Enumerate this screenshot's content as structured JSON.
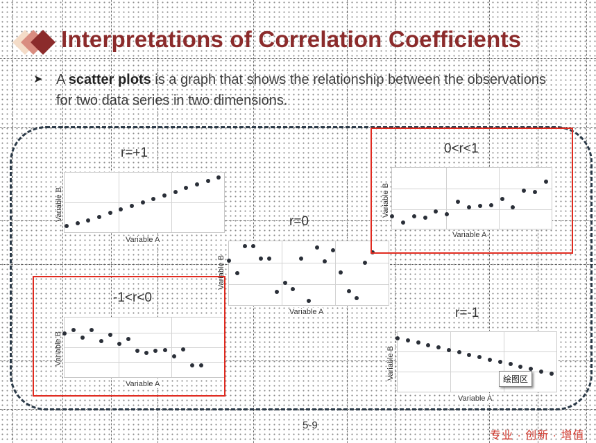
{
  "title": "Interpretations of Correlation Coefficients",
  "bullet": {
    "prefix": "A ",
    "bold": "scatter plots",
    "rest": " is a graph that shows the relationship between the observations for two data series in two dimensions."
  },
  "colors": {
    "title": "#8b2b2b",
    "highlight_box": "#e02a1f",
    "frame": "#2b3a48",
    "dots": "#2a2f38"
  },
  "chart_data": [
    {
      "type": "scatter",
      "title": "r=+1",
      "xlabel": "Variable A",
      "ylabel": "Variable B",
      "x": [
        1,
        2,
        3,
        4,
        5,
        6,
        7,
        8,
        9,
        10,
        11,
        12,
        13,
        14,
        15
      ],
      "y": [
        1.0,
        1.5,
        2.0,
        2.6,
        3.2,
        3.8,
        4.4,
        5.0,
        5.6,
        6.2,
        6.8,
        7.4,
        8.0,
        8.6,
        9.2
      ],
      "xlim": [
        0.8,
        15.5
      ],
      "ylim": [
        0,
        10
      ]
    },
    {
      "type": "scatter",
      "title": "0<r<1",
      "xlabel": "Variable A",
      "ylabel": "Variable B",
      "x": [
        1,
        2,
        3,
        4,
        5,
        6,
        7,
        8,
        9,
        10,
        11,
        12,
        13,
        14,
        15
      ],
      "y": [
        2.1,
        1.0,
        2.0,
        1.8,
        2.8,
        2.4,
        4.4,
        3.5,
        3.8,
        3.9,
        4.9,
        3.5,
        6.2,
        6.0,
        7.7
      ],
      "xlim": [
        1,
        15.5
      ],
      "ylim": [
        0,
        10
      ]
    },
    {
      "type": "scatter",
      "title": "r=0",
      "xlabel": "Variable A",
      "ylabel": "Variable B",
      "x": [
        1,
        2,
        3,
        4,
        5,
        6,
        7,
        8,
        9,
        10,
        11,
        12,
        13,
        14,
        15,
        16,
        17,
        18,
        19
      ],
      "y": [
        7.0,
        5.0,
        9.2,
        9.2,
        7.3,
        7.3,
        2.1,
        3.5,
        2.5,
        7.3,
        0.6,
        9.0,
        6.8,
        8.6,
        5.1,
        2.2,
        1.1,
        6.6,
        8.3
      ],
      "xlim": [
        1,
        21
      ],
      "ylim": [
        0,
        10
      ]
    },
    {
      "type": "scatter",
      "title": "-1<r<0",
      "xlabel": "Variable A",
      "ylabel": "Variable B",
      "x": [
        1,
        2,
        3,
        4,
        5,
        6,
        7,
        8,
        9,
        10,
        11,
        12,
        13,
        14,
        15,
        16
      ],
      "y": [
        7.3,
        7.9,
        6.6,
        7.9,
        6.1,
        7.1,
        5.6,
        6.4,
        4.4,
        4.1,
        4.4,
        4.5,
        3.5,
        4.6,
        2.0,
        2.0
      ],
      "xlim": [
        1,
        18.5
      ],
      "ylim": [
        0,
        10
      ]
    },
    {
      "type": "scatter",
      "title": "r=-1",
      "xlabel": "Variable A",
      "ylabel": "Variable B",
      "x": [
        1,
        2,
        3,
        4,
        5,
        6,
        7,
        8,
        9,
        10,
        11,
        12,
        13,
        14,
        15,
        16
      ],
      "y": [
        9.0,
        8.6,
        8.2,
        7.8,
        7.4,
        7.0,
        6.6,
        6.2,
        5.8,
        5.4,
        5.0,
        4.6,
        4.2,
        3.8,
        3.4,
        3.0
      ],
      "xlim": [
        1,
        16.5
      ],
      "ylim": [
        0,
        10
      ]
    }
  ],
  "tooltip": "绘图区",
  "page_number": "5-9",
  "footer_tag": "专业 · 创新 · 增值"
}
